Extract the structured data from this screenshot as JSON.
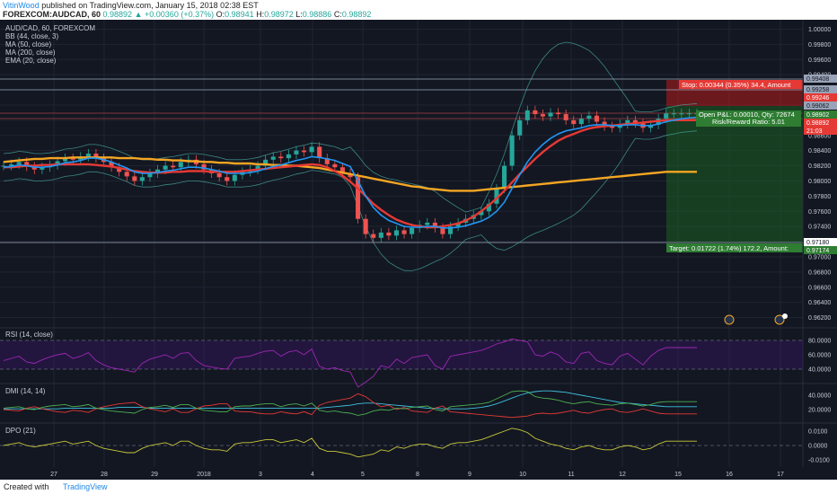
{
  "header": {
    "author": "VitinWood",
    "published": "published on TradingView.com, January 15, 2018 02:38 EST",
    "symbol": "FOREXCOM:AUDCAD, 60",
    "last": "0.98892",
    "change": "+0.00360 (+0.37%)",
    "o_label": "O:",
    "o_val": "0.98941",
    "h_label": "H:",
    "h_val": "0.98972",
    "l_label": "L:",
    "l_val": "0.98886",
    "c_label": "C:",
    "c_val": "0.98892"
  },
  "legend": {
    "title": "AUD/CAD, 60, FOREXCOM",
    "bb": "BB (44, close, 3)",
    "ma50": "MA (50, close)",
    "ma200": "MA (200, close)",
    "ema20": "EMA (20, close)"
  },
  "position": {
    "stop": "Stop: 0.00344 (0.35%) 34.4, Amount",
    "pnl": "Open P&L: 0.00010, Qty: 72674",
    "rr": "Risk/Reward Ratio: 5.01",
    "target": "Target: 0.01722 (1.74%) 172.2, Amount:"
  },
  "price_tags": {
    "t1": "0.99408",
    "t2": "0.99258",
    "t3": "0.99246",
    "t4": "0.99062",
    "t5": "0.98902",
    "t6": "0.98892",
    "t7": "21:03",
    "t8": "0.97180",
    "t9": "0.97174"
  },
  "indicators": {
    "rsi": "RSI (14, close)",
    "dmi": "DMI (14, 14)",
    "dpo": "DPO (21)"
  },
  "footer": {
    "created": "Created with",
    "brand": "TradingView"
  },
  "colors": {
    "background": "#131722",
    "candle_up": "#26a69a",
    "candle_down": "#ef5350",
    "ma50": "#e53935",
    "ma200": "#f5a623",
    "ema20": "#2196f3",
    "bb": "#4db6ac",
    "rsi": "#9c27b0",
    "dpo": "#c8c83c",
    "stop_zone": "#b71c1c",
    "target_zone": "#1b5e20"
  },
  "chart_data": {
    "type": "line",
    "title": "AUD/CAD, 60, FOREXCOM",
    "price_axis": [
      "1.00000",
      "0.99800",
      "0.99600",
      "0.99400",
      "0.99200",
      "0.99000",
      "0.98800",
      "0.98600",
      "0.98400",
      "0.98200",
      "0.98000",
      "0.97800",
      "0.97600",
      "0.97400",
      "0.97200",
      "0.97000",
      "0.96800",
      "0.96600",
      "0.96400",
      "0.96200"
    ],
    "ylim": [
      0.961,
      1.001
    ],
    "x_ticks": [
      "27",
      "28",
      "29",
      "2018",
      "3",
      "4",
      "5",
      "8",
      "9",
      "10",
      "11",
      "12",
      "15",
      "16",
      "17"
    ],
    "x": [
      0,
      1,
      2,
      3,
      4,
      5,
      6,
      7,
      8,
      9,
      10,
      11,
      12,
      13,
      14,
      15,
      16,
      17,
      18,
      19,
      20,
      21,
      22,
      23,
      24,
      25,
      26,
      27,
      28,
      29,
      30,
      31,
      32,
      33,
      34,
      35,
      36,
      37,
      38,
      39,
      40,
      41,
      42,
      43,
      44,
      45,
      46,
      47,
      48,
      49,
      50,
      51,
      52,
      53,
      54,
      55,
      56,
      57,
      58,
      59,
      60,
      61,
      62,
      63,
      64,
      65,
      66,
      67,
      68,
      69,
      70,
      71,
      72,
      73,
      74,
      75,
      76,
      77,
      78,
      79,
      80,
      81,
      82,
      83,
      84,
      85,
      86,
      87,
      88,
      89,
      90
    ],
    "series": [
      {
        "name": "AUD/CAD",
        "values": [
          0.982,
          0.9822,
          0.9825,
          0.9819,
          0.9815,
          0.9818,
          0.9821,
          0.9826,
          0.983,
          0.9828,
          0.9832,
          0.9836,
          0.983,
          0.9825,
          0.9818,
          0.9812,
          0.9806,
          0.98,
          0.9805,
          0.981,
          0.9815,
          0.982,
          0.9818,
          0.9825,
          0.9828,
          0.9822,
          0.9815,
          0.981,
          0.9805,
          0.98,
          0.9808,
          0.9812,
          0.9815,
          0.982,
          0.9828,
          0.9832,
          0.983,
          0.9835,
          0.984,
          0.9838,
          0.9845,
          0.983,
          0.9822,
          0.9818,
          0.981,
          0.9805,
          0.975,
          0.973,
          0.9725,
          0.9732,
          0.9728,
          0.9735,
          0.973,
          0.9738,
          0.9742,
          0.9745,
          0.9738,
          0.973,
          0.974,
          0.9745,
          0.975,
          0.9755,
          0.976,
          0.977,
          0.979,
          0.982,
          0.986,
          0.988,
          0.9893,
          0.9888,
          0.9885,
          0.989,
          0.9888,
          0.988,
          0.9875,
          0.9882,
          0.9886,
          0.9878,
          0.9872,
          0.987,
          0.9875,
          0.988,
          0.9876,
          0.987,
          0.9874,
          0.9882,
          0.9889,
          0.9889,
          0.9889,
          0.9889,
          0.9889
        ]
      },
      {
        "name": "MA (50, close)",
        "values": [
          0.9818,
          0.9818,
          0.9819,
          0.982,
          0.982,
          0.9821,
          0.9821,
          0.9822,
          0.9822,
          0.9822,
          0.9822,
          0.9822,
          0.9821,
          0.982,
          0.9819,
          0.9817,
          0.9815,
          0.9813,
          0.9812,
          0.9811,
          0.9811,
          0.9811,
          0.9812,
          0.9812,
          0.9813,
          0.9813,
          0.9813,
          0.9812,
          0.9812,
          0.9812,
          0.9812,
          0.9813,
          0.9814,
          0.9815,
          0.9816,
          0.9817,
          0.9818,
          0.9819,
          0.982,
          0.9821,
          0.9822,
          0.9821,
          0.9818,
          0.9813,
          0.9807,
          0.9799,
          0.979,
          0.978,
          0.977,
          0.9762,
          0.9755,
          0.9749,
          0.9745,
          0.9742,
          0.974,
          0.9739,
          0.9739,
          0.974,
          0.9742,
          0.9744,
          0.9748,
          0.9753,
          0.976,
          0.9768,
          0.9777,
          0.9787,
          0.9798,
          0.9809,
          0.9819,
          0.9829,
          0.9838,
          0.9846,
          0.9853,
          0.9858,
          0.9862,
          0.9866,
          0.9869,
          0.9871,
          0.9872,
          0.9873,
          0.9874,
          0.9875,
          0.9876,
          0.9877,
          0.9878,
          0.9879,
          0.988,
          0.988,
          0.988,
          0.988,
          0.988
        ]
      },
      {
        "name": "MA (200, close)",
        "values": [
          0.9825,
          0.9826,
          0.9827,
          0.9828,
          0.9829,
          0.9829,
          0.983,
          0.983,
          0.983,
          0.9831,
          0.9831,
          0.9831,
          0.9831,
          0.9831,
          0.9831,
          0.983,
          0.983,
          0.983,
          0.9829,
          0.9829,
          0.9828,
          0.9828,
          0.9827,
          0.9827,
          0.9826,
          0.9826,
          0.9825,
          0.9825,
          0.9824,
          0.9824,
          0.9823,
          0.9823,
          0.9823,
          0.9822,
          0.9822,
          0.9821,
          0.9821,
          0.982,
          0.982,
          0.9819,
          0.9818,
          0.9817,
          0.9815,
          0.9813,
          0.9811,
          0.9809,
          0.9807,
          0.9805,
          0.9803,
          0.9801,
          0.9799,
          0.9797,
          0.9795,
          0.9793,
          0.9792,
          0.979,
          0.9789,
          0.9788,
          0.9787,
          0.9787,
          0.9787,
          0.9787,
          0.9788,
          0.9789,
          0.979,
          0.9791,
          0.9792,
          0.9793,
          0.9794,
          0.9795,
          0.9796,
          0.9797,
          0.9798,
          0.9799,
          0.98,
          0.9801,
          0.9802,
          0.9803,
          0.9804,
          0.9805,
          0.9806,
          0.9807,
          0.9808,
          0.9809,
          0.981,
          0.9811,
          0.9812,
          0.9812,
          0.9812,
          0.9812,
          0.9812
        ]
      },
      {
        "name": "EMA (20, close)",
        "values": [
          0.9818,
          0.9819,
          0.9821,
          0.982,
          0.9818,
          0.9818,
          0.9819,
          0.9821,
          0.9824,
          0.9825,
          0.9827,
          0.983,
          0.983,
          0.9828,
          0.9825,
          0.9821,
          0.9817,
          0.9812,
          0.981,
          0.981,
          0.9811,
          0.9813,
          0.9814,
          0.9816,
          0.9818,
          0.9818,
          0.9817,
          0.9815,
          0.9813,
          0.981,
          0.981,
          0.981,
          0.9811,
          0.9813,
          0.9816,
          0.9819,
          0.9821,
          0.9824,
          0.9827,
          0.9829,
          0.9832,
          0.9831,
          0.9829,
          0.9827,
          0.9823,
          0.9819,
          0.98,
          0.978,
          0.9765,
          0.9755,
          0.9748,
          0.9744,
          0.974,
          0.9739,
          0.9739,
          0.974,
          0.974,
          0.9738,
          0.9738,
          0.9739,
          0.9741,
          0.9744,
          0.9747,
          0.9752,
          0.976,
          0.9772,
          0.979,
          0.9808,
          0.9825,
          0.9838,
          0.9848,
          0.9856,
          0.9862,
          0.9866,
          0.9868,
          0.987,
          0.9873,
          0.9874,
          0.9874,
          0.9873,
          0.9873,
          0.9874,
          0.9874,
          0.9873,
          0.9873,
          0.9875,
          0.9878,
          0.988,
          0.9882,
          0.9883,
          0.9884
        ]
      }
    ],
    "rsi_levels": [
      80,
      40
    ],
    "rsi_axis": [
      "80.0000",
      "60.0000",
      "40.0000"
    ],
    "dmi_axis": [
      "40.0000",
      "20.0000"
    ],
    "dpo_axis": [
      "0.0100",
      "0.0000",
      "-0.0100"
    ],
    "rsi": [
      52,
      55,
      58,
      50,
      48,
      53,
      57,
      60,
      62,
      55,
      58,
      63,
      52,
      46,
      42,
      40,
      38,
      36,
      48,
      54,
      57,
      60,
      55,
      62,
      63,
      52,
      45,
      43,
      41,
      40,
      55,
      57,
      58,
      62,
      65,
      66,
      58,
      64,
      66,
      60,
      68,
      44,
      40,
      42,
      38,
      36,
      15,
      22,
      30,
      45,
      42,
      54,
      48,
      56,
      58,
      60,
      45,
      40,
      58,
      60,
      62,
      64,
      66,
      70,
      75,
      78,
      82,
      80,
      78,
      60,
      58,
      64,
      60,
      50,
      48,
      62,
      64,
      52,
      48,
      46,
      58,
      62,
      54,
      46,
      58,
      66,
      70,
      70,
      70,
      70,
      70
    ],
    "dmi_plus": [
      22,
      23,
      24,
      21,
      20,
      23,
      25,
      26,
      27,
      24,
      25,
      27,
      22,
      20,
      18,
      17,
      16,
      15,
      20,
      23,
      24,
      26,
      23,
      27,
      27,
      22,
      19,
      18,
      17,
      17,
      24,
      25,
      25,
      27,
      28,
      28,
      24,
      27,
      28,
      25,
      29,
      19,
      17,
      18,
      16,
      15,
      12,
      14,
      18,
      20,
      19,
      22,
      21,
      23,
      24,
      25,
      20,
      18,
      24,
      25,
      26,
      27,
      28,
      30,
      35,
      40,
      45,
      46,
      45,
      38,
      36,
      35,
      33,
      30,
      28,
      30,
      31,
      28,
      27,
      26,
      28,
      29,
      27,
      25,
      27,
      30,
      31,
      31,
      31,
      31,
      31
    ],
    "dmi_minus": [
      20,
      19,
      18,
      22,
      24,
      21,
      19,
      17,
      16,
      19,
      18,
      16,
      21,
      24,
      26,
      28,
      29,
      30,
      24,
      21,
      19,
      17,
      21,
      16,
      16,
      21,
      25,
      26,
      28,
      28,
      18,
      17,
      17,
      15,
      14,
      14,
      17,
      15,
      14,
      17,
      13,
      26,
      30,
      32,
      34,
      36,
      42,
      38,
      30,
      24,
      26,
      20,
      23,
      18,
      17,
      16,
      22,
      25,
      17,
      16,
      15,
      14,
      13,
      12,
      11,
      10,
      9,
      10,
      11,
      14,
      15,
      14,
      15,
      17,
      19,
      16,
      15,
      18,
      20,
      21,
      17,
      16,
      18,
      21,
      18,
      15,
      14,
      14,
      14,
      14,
      14
    ],
    "adx": [
      21,
      21,
      21,
      21,
      21,
      21,
      21,
      21,
      22,
      22,
      22,
      22,
      22,
      22,
      22,
      23,
      23,
      23,
      23,
      22,
      22,
      22,
      22,
      22,
      22,
      22,
      22,
      22,
      22,
      22,
      22,
      22,
      22,
      22,
      22,
      22,
      22,
      22,
      22,
      22,
      22,
      22,
      23,
      24,
      25,
      26,
      28,
      29,
      29,
      28,
      27,
      26,
      25,
      24,
      23,
      22,
      22,
      21,
      21,
      21,
      21,
      22,
      23,
      25,
      28,
      32,
      36,
      40,
      43,
      45,
      46,
      46,
      45,
      44,
      42,
      40,
      38,
      36,
      34,
      32,
      30,
      29,
      28,
      27,
      26,
      25,
      24,
      24,
      24,
      24,
      24
    ],
    "dpo": [
      0.0,
      0.001,
      0.002,
      0.0,
      -0.001,
      0.0,
      0.001,
      0.002,
      0.003,
      0.001,
      0.002,
      0.003,
      0.0,
      -0.002,
      -0.003,
      -0.004,
      -0.005,
      -0.005,
      -0.002,
      0.0,
      0.001,
      0.002,
      0.0,
      0.003,
      0.003,
      0.0,
      -0.002,
      -0.003,
      -0.003,
      -0.004,
      0.001,
      0.002,
      0.002,
      0.003,
      0.004,
      0.004,
      0.002,
      0.003,
      0.004,
      0.002,
      0.005,
      -0.002,
      -0.004,
      -0.004,
      -0.005,
      -0.006,
      -0.008,
      -0.007,
      -0.006,
      -0.003,
      -0.004,
      -0.001,
      -0.002,
      0.0,
      0.001,
      0.001,
      -0.001,
      -0.002,
      0.001,
      0.002,
      0.002,
      0.003,
      0.004,
      0.006,
      0.008,
      0.01,
      0.012,
      0.011,
      0.009,
      0.005,
      0.003,
      0.001,
      0.0,
      -0.002,
      -0.003,
      -0.001,
      0.0,
      -0.002,
      -0.003,
      -0.003,
      -0.001,
      0.0,
      -0.001,
      -0.003,
      -0.002,
      0.001,
      0.003,
      0.003,
      0.003,
      0.003,
      0.003
    ]
  }
}
